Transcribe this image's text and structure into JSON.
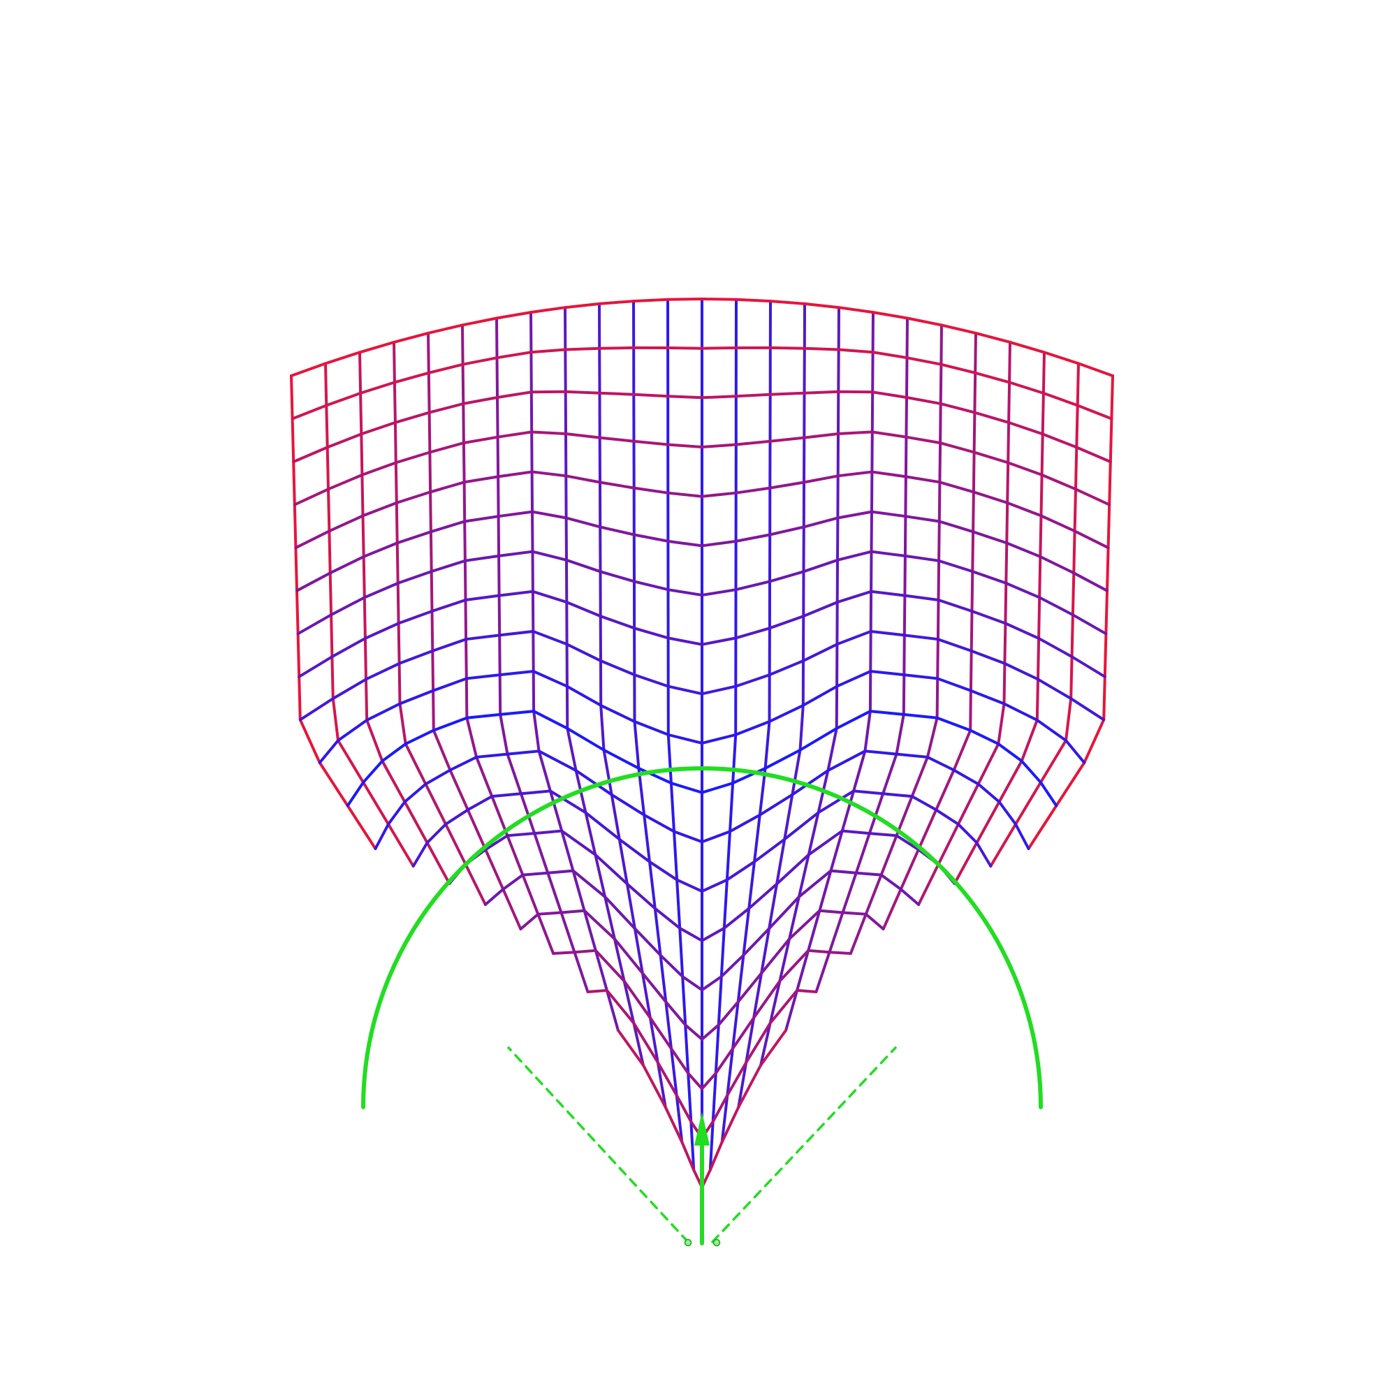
{
  "colors": {
    "background": "#ffffff",
    "grid_edge": "#e8143a",
    "grid_center": "#1a1aff",
    "overlay": "#22dd22",
    "overlay_dark": "#11aa11"
  },
  "mesh": {
    "columns": 25,
    "rows": 19
  }
}
